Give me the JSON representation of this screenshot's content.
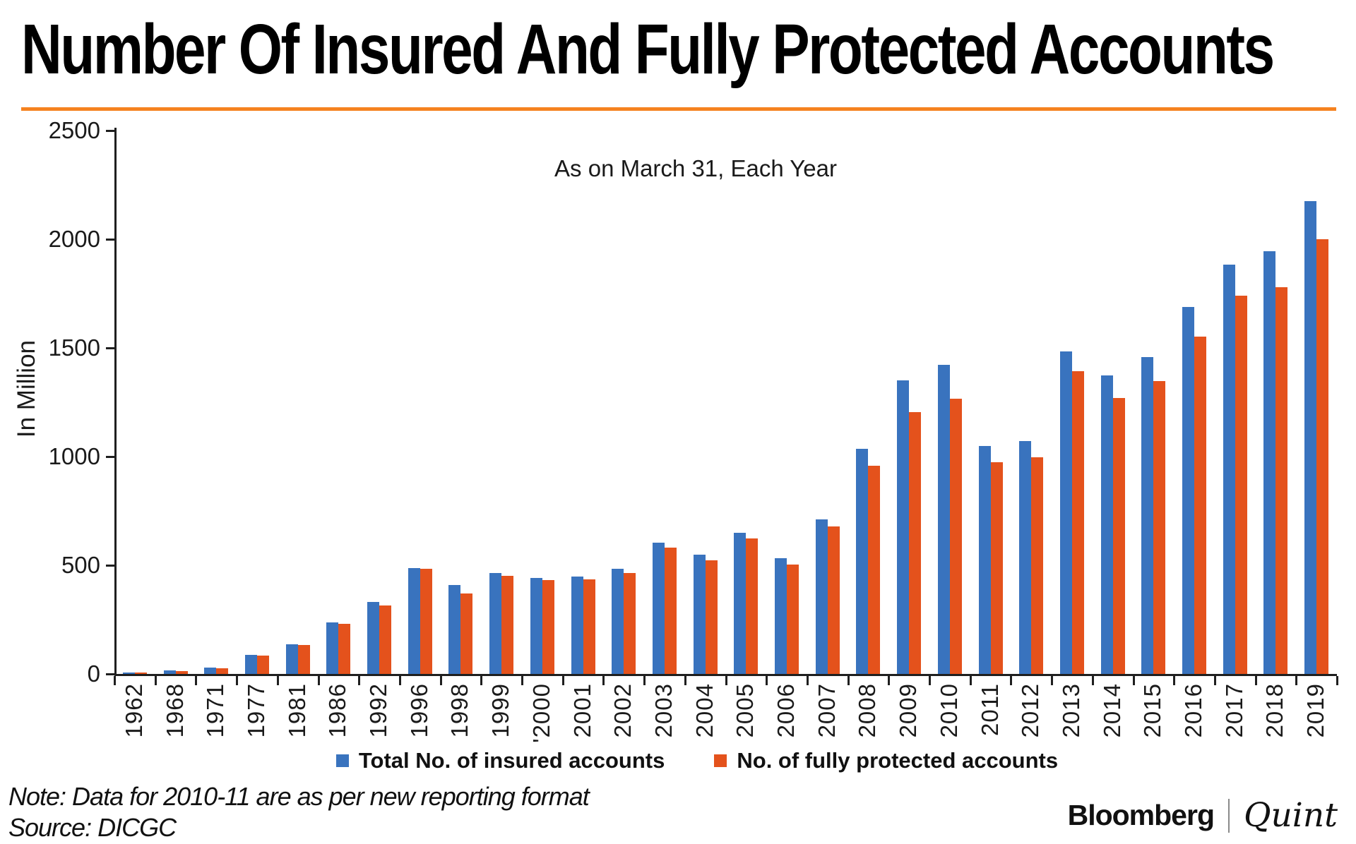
{
  "page": {
    "title": "Number Of Insured And Fully Protected Accounts",
    "subtitle": "As on March 31, Each Year",
    "accent_rule_color": "#F5821F",
    "notes": {
      "line1": "Note: Data for 2010-11 are as per new reporting format",
      "line2": "Source: DICGC"
    },
    "branding": {
      "left": "Bloomberg",
      "right": "Quint"
    }
  },
  "chart_data": {
    "type": "bar",
    "title": "Number Of Insured And Fully Protected Accounts",
    "subtitle": "As on March 31, Each Year",
    "xlabel": "",
    "ylabel": "In Million",
    "ylim": [
      0,
      2500
    ],
    "yticks": [
      0,
      500,
      1000,
      1500,
      2000,
      2500
    ],
    "grid": false,
    "legend_position": "bottom",
    "categories": [
      "1962",
      "1968",
      "1971",
      "1977",
      "1981",
      "1986",
      "1992",
      "1996",
      "1998",
      "1999",
      "'2000",
      "2001",
      "2002",
      "2003",
      "2004",
      "2005",
      "2006",
      "2007",
      "2008",
      "2009",
      "2010",
      "2011",
      "2012",
      "2013",
      "2014",
      "2015",
      "2016",
      "2017",
      "2018",
      "2019"
    ],
    "series": [
      {
        "name": "Total No. of insured accounts",
        "color": "#3973BE",
        "values": [
          8,
          16,
          29,
          88,
          137,
          236,
          330,
          488,
          410,
          463,
          442,
          448,
          485,
          604,
          548,
          650,
          534,
          711,
          1037,
          1350,
          1423,
          1049,
          1072,
          1483,
          1373,
          1459,
          1687,
          1884,
          1946,
          2174
        ]
      },
      {
        "name": "No. of fully protected accounts",
        "color": "#E4521C",
        "values": [
          5,
          13,
          25,
          84,
          134,
          232,
          316,
          483,
          370,
          452,
          431,
          434,
          464,
          580,
          523,
          622,
          503,
          679,
          959,
          1205,
          1267,
          973,
          996,
          1392,
          1271,
          1348,
          1552,
          1740,
          1780,
          2000
        ]
      }
    ]
  }
}
